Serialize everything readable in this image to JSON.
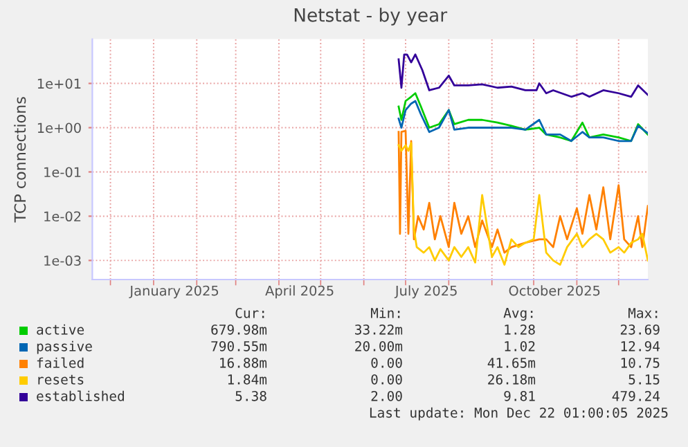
{
  "chart_data": {
    "type": "line",
    "title": "Netstat - by year",
    "ylabel": "TCP connections",
    "log": "y",
    "grid": true,
    "legend": "bottom",
    "xlim": [
      "2024-11-18",
      "2025-12-22"
    ],
    "xticks": [
      {
        "value": "2024-12-01",
        "label": null
      },
      {
        "value": "2025-01-01",
        "label": null
      },
      {
        "value": "2025-02-01",
        "label": null
      },
      {
        "value": "2025-03-01",
        "label": null
      },
      {
        "value": "2025-04-01",
        "label": null
      },
      {
        "value": "2025-05-01",
        "label": null
      },
      {
        "value": "2025-06-01",
        "label": null
      },
      {
        "value": "2025-07-01",
        "label": null
      },
      {
        "value": "2025-08-01",
        "label": null
      },
      {
        "value": "2025-09-01",
        "label": null
      },
      {
        "value": "2025-10-01",
        "label": null
      },
      {
        "value": "2025-11-01",
        "label": null
      },
      {
        "value": "2025-12-01",
        "label": null
      },
      {
        "value": "2025-01-16",
        "label": "January 2025"
      },
      {
        "value": "2025-04-16",
        "label": "April 2025"
      },
      {
        "value": "2025-07-16",
        "label": "July 2025"
      },
      {
        "value": "2025-10-16",
        "label": "October 2025"
      }
    ],
    "ylim": [
      0.00037,
      100
    ],
    "yticks": [
      {
        "value": 0.001,
        "label": "1e-03"
      },
      {
        "value": 0.01,
        "label": "1e-02"
      },
      {
        "value": 0.1,
        "label": "1e-01"
      },
      {
        "value": 1,
        "label": "1e+00"
      },
      {
        "value": 10,
        "label": "1e+01"
      }
    ],
    "series": [
      {
        "name": "active",
        "color": "#00cc00",
        "x": [
          "2025-06-26",
          "2025-06-28",
          "2025-07-01",
          "2025-07-05",
          "2025-07-08",
          "2025-07-12",
          "2025-07-18",
          "2025-07-25",
          "2025-08-01",
          "2025-08-05",
          "2025-08-15",
          "2025-08-25",
          "2025-09-05",
          "2025-09-15",
          "2025-09-25",
          "2025-10-05",
          "2025-10-10",
          "2025-10-20",
          "2025-10-28",
          "2025-11-05",
          "2025-11-10",
          "2025-11-20",
          "2025-12-01",
          "2025-12-10",
          "2025-12-15",
          "2025-12-22"
        ],
        "values": [
          3,
          1.5,
          4,
          5,
          6,
          3,
          1.0,
          1.2,
          2.5,
          1.2,
          1.5,
          1.5,
          1.3,
          1.1,
          0.9,
          1.0,
          0.7,
          0.6,
          0.5,
          1.3,
          0.6,
          0.7,
          0.6,
          0.5,
          1.2,
          0.7
        ]
      },
      {
        "name": "passive",
        "color": "#0066b3",
        "x": [
          "2025-06-26",
          "2025-06-28",
          "2025-07-01",
          "2025-07-05",
          "2025-07-08",
          "2025-07-12",
          "2025-07-18",
          "2025-07-25",
          "2025-08-01",
          "2025-08-05",
          "2025-08-15",
          "2025-08-25",
          "2025-09-05",
          "2025-09-15",
          "2025-09-25",
          "2025-10-05",
          "2025-10-10",
          "2025-10-20",
          "2025-10-28",
          "2025-11-05",
          "2025-11-10",
          "2025-11-20",
          "2025-12-01",
          "2025-12-10",
          "2025-12-15",
          "2025-12-22"
        ],
        "values": [
          1.6,
          1.0,
          2.5,
          3.5,
          4,
          2,
          0.8,
          1.0,
          2.5,
          0.9,
          1.0,
          1.0,
          1.0,
          1.0,
          0.9,
          1.5,
          0.7,
          0.7,
          0.5,
          0.8,
          0.6,
          0.6,
          0.5,
          0.5,
          1.1,
          0.75
        ]
      },
      {
        "name": "failed",
        "color": "#ff8000",
        "x": [
          "2025-06-26",
          "2025-06-27",
          "2025-06-28",
          "2025-07-01",
          "2025-07-03",
          "2025-07-05",
          "2025-07-07",
          "2025-07-10",
          "2025-07-14",
          "2025-07-18",
          "2025-07-22",
          "2025-07-26",
          "2025-08-01",
          "2025-08-05",
          "2025-08-10",
          "2025-08-15",
          "2025-08-20",
          "2025-08-25",
          "2025-09-01",
          "2025-09-05",
          "2025-09-10",
          "2025-09-15",
          "2025-09-25",
          "2025-10-05",
          "2025-10-10",
          "2025-10-15",
          "2025-10-20",
          "2025-10-25",
          "2025-11-01",
          "2025-11-05",
          "2025-11-10",
          "2025-11-15",
          "2025-11-20",
          "2025-11-25",
          "2025-12-01",
          "2025-12-05",
          "2025-12-10",
          "2025-12-15",
          "2025-12-18",
          "2025-12-22"
        ],
        "values": [
          0.8,
          0.004,
          0.8,
          0.85,
          0.004,
          0.5,
          0.003,
          0.01,
          0.005,
          0.02,
          0.003,
          0.01,
          0.002,
          0.02,
          0.004,
          0.01,
          0.002,
          0.008,
          0.002,
          0.005,
          0.0015,
          0.002,
          0.0025,
          0.003,
          0.003,
          0.002,
          0.01,
          0.003,
          0.015,
          0.004,
          0.03,
          0.005,
          0.045,
          0.003,
          0.05,
          0.003,
          0.002,
          0.01,
          0.002,
          0.017
        ]
      },
      {
        "name": "resets",
        "color": "#ffcc00",
        "x": [
          "2025-06-26",
          "2025-06-28",
          "2025-07-01",
          "2025-07-03",
          "2025-07-05",
          "2025-07-07",
          "2025-07-09",
          "2025-07-14",
          "2025-07-18",
          "2025-07-22",
          "2025-07-26",
          "2025-08-01",
          "2025-08-05",
          "2025-08-10",
          "2025-08-15",
          "2025-08-20",
          "2025-08-25",
          "2025-09-01",
          "2025-09-05",
          "2025-09-10",
          "2025-09-15",
          "2025-09-20",
          "2025-09-25",
          "2025-10-01",
          "2025-10-05",
          "2025-10-10",
          "2025-10-15",
          "2025-10-20",
          "2025-10-25",
          "2025-11-01",
          "2025-11-05",
          "2025-11-10",
          "2025-11-15",
          "2025-11-20",
          "2025-11-25",
          "2025-12-01",
          "2025-12-05",
          "2025-12-10",
          "2025-12-15",
          "2025-12-18",
          "2025-12-22"
        ],
        "values": [
          0.4,
          0.3,
          0.4,
          0.3,
          0.45,
          0.005,
          0.002,
          0.0015,
          0.002,
          0.001,
          0.0018,
          0.001,
          0.002,
          0.0012,
          0.002,
          0.0009,
          0.03,
          0.0012,
          0.002,
          0.0008,
          0.003,
          0.002,
          0.0025,
          0.003,
          0.03,
          0.0015,
          0.001,
          0.0008,
          0.002,
          0.004,
          0.002,
          0.003,
          0.004,
          0.003,
          0.0015,
          0.002,
          0.0015,
          0.0025,
          0.003,
          0.004,
          0.001
        ]
      },
      {
        "name": "established",
        "color": "#330099",
        "x": [
          "2025-06-26",
          "2025-06-28",
          "2025-06-30",
          "2025-07-02",
          "2025-07-05",
          "2025-07-08",
          "2025-07-13",
          "2025-07-18",
          "2025-07-25",
          "2025-08-01",
          "2025-08-05",
          "2025-08-15",
          "2025-08-25",
          "2025-09-05",
          "2025-09-15",
          "2025-09-25",
          "2025-10-03",
          "2025-10-05",
          "2025-10-10",
          "2025-10-15",
          "2025-10-28",
          "2025-11-05",
          "2025-11-10",
          "2025-11-20",
          "2025-12-01",
          "2025-12-10",
          "2025-12-15",
          "2025-12-22"
        ],
        "values": [
          35,
          8,
          45,
          45,
          30,
          45,
          20,
          7,
          8,
          15,
          9,
          9,
          9.5,
          8,
          8.5,
          7,
          7,
          10,
          6,
          7,
          5,
          6,
          5,
          7,
          6,
          5,
          9,
          5.5
        ]
      }
    ],
    "annotations": [
      "Cur:",
      "Min:",
      "Avg:",
      "Max:",
      "679.98m",
      "33.22m",
      "1.28",
      "23.69",
      "790.55m",
      "20.00m",
      "1.02",
      "12.94",
      "16.88m",
      "0.00",
      "41.65m",
      "10.75",
      "1.84m",
      "0.00",
      "26.18m",
      "5.15",
      "5.38",
      "2.00",
      "9.81",
      "479.24",
      "Last update: Mon Dec 22 01:00:05 2025"
    ]
  }
}
